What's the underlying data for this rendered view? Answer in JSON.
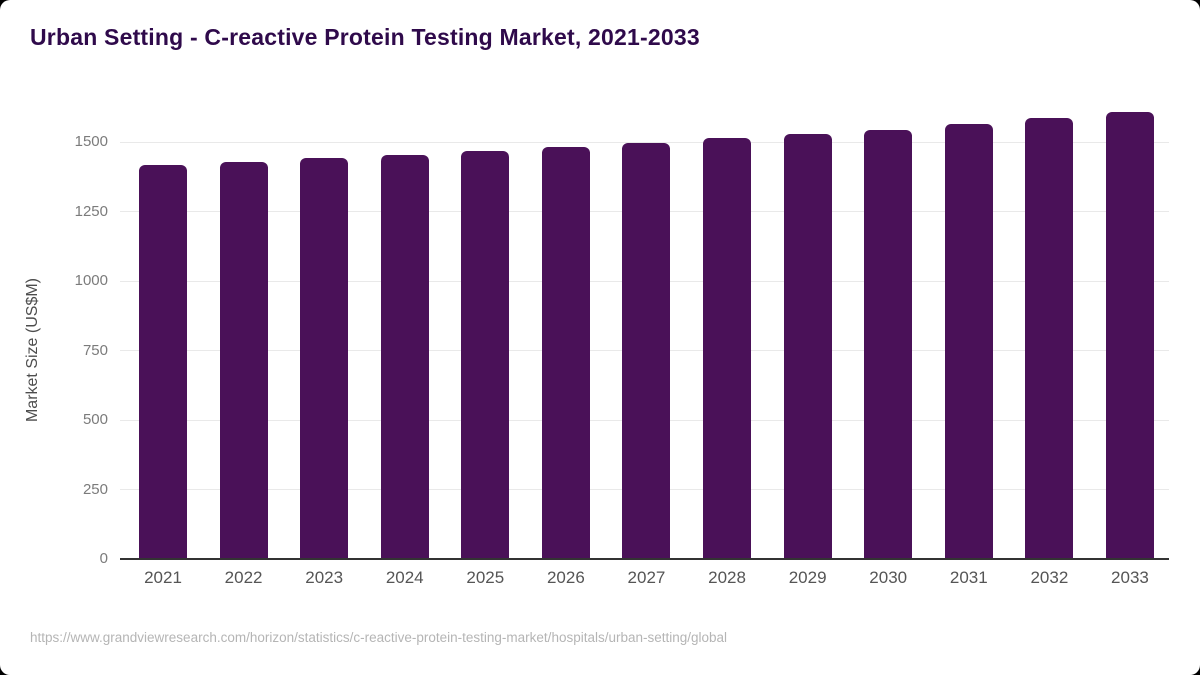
{
  "title": "Urban Setting - C-reactive Protein Testing Market, 2021-2033",
  "source_url": "https://www.grandviewresearch.com/horizon/statistics/c-reactive-protein-testing-market/hospitals/urban-setting/global",
  "colors": {
    "bar": "#4a1158",
    "title_text": "#2f0a4b",
    "gridline": "#e9e9e9",
    "axis_line": "#333333",
    "y_tick_text": "#7b7b7b",
    "x_tick_text": "#555555",
    "source_text": "#b5b5b5",
    "background": "#ffffff"
  },
  "chart_data": {
    "type": "bar",
    "title": "Urban Setting - C-reactive Protein Testing Market, 2021-2033",
    "xlabel": "",
    "ylabel": "Market Size (US$M)",
    "categories": [
      "2021",
      "2022",
      "2023",
      "2024",
      "2025",
      "2026",
      "2027",
      "2028",
      "2029",
      "2030",
      "2031",
      "2032",
      "2033"
    ],
    "values": [
      1418,
      1430,
      1443,
      1453,
      1469,
      1484,
      1499,
      1514,
      1529,
      1545,
      1565,
      1587,
      1610
    ],
    "y_ticks": [
      0,
      250,
      500,
      750,
      1000,
      1250,
      1500
    ],
    "ylim": [
      0,
      1650
    ],
    "grid": "horizontal",
    "legend": "none",
    "bar_color": "#4a1158"
  }
}
